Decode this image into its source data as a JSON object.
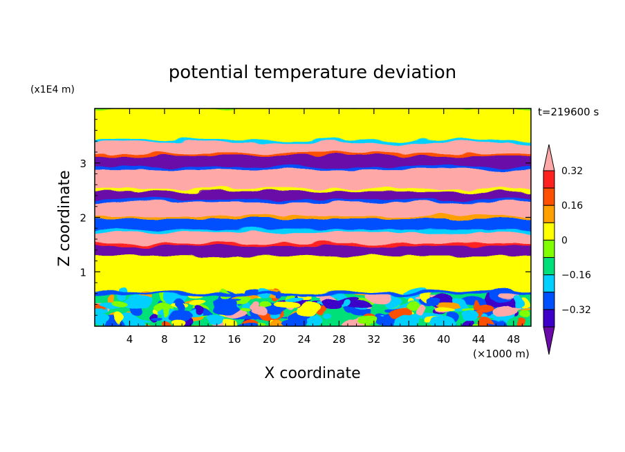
{
  "chart_data": {
    "type": "heatmap",
    "title": "potential temperature deviation",
    "xlabel": "X coordinate",
    "ylabel": "Z coordinate",
    "x_unit": "(×1000 m)",
    "y_unit": "(x1E4 m)",
    "time_label": "t=219600 s",
    "xlim": [
      0,
      50
    ],
    "ylim": [
      0,
      4
    ],
    "x_ticks": [
      4,
      8,
      12,
      16,
      20,
      24,
      28,
      32,
      36,
      40,
      44,
      48
    ],
    "y_ticks": [
      1,
      2,
      3
    ],
    "colorbar": {
      "levels": [
        -0.4,
        -0.32,
        -0.24,
        -0.16,
        -0.08,
        0,
        0.08,
        0.16,
        0.24,
        0.32,
        0.4
      ],
      "labeled_ticks": [
        0.32,
        0.16,
        0,
        -0.16,
        -0.32
      ],
      "colors_low_to_high": [
        "#6a0aa8",
        "#3c00c8",
        "#0050ff",
        "#00d0ff",
        "#00e078",
        "#80ff00",
        "#ffff00",
        "#ffa000",
        "#ff5000",
        "#ff2020",
        "#ffa8a8"
      ],
      "extend": "both"
    },
    "layers": [
      {
        "z": [
          0.0,
          0.6
        ],
        "value": "mixed"
      },
      {
        "z": [
          0.6,
          1.3
        ],
        "value": 0.0
      },
      {
        "z": [
          1.3,
          1.5
        ],
        "value": -0.4
      },
      {
        "z": [
          1.5,
          1.75
        ],
        "value": 0.32
      },
      {
        "z": [
          1.75,
          2.0
        ],
        "value": -0.32
      },
      {
        "z": [
          2.0,
          2.3
        ],
        "value": 0.4
      },
      {
        "z": [
          2.3,
          2.5
        ],
        "value": -0.4
      },
      {
        "z": [
          2.5,
          2.9
        ],
        "value": 0.4
      },
      {
        "z": [
          2.9,
          3.15
        ],
        "value": -0.4
      },
      {
        "z": [
          3.15,
          3.4
        ],
        "value": 0.4
      },
      {
        "z": [
          3.4,
          4.0
        ],
        "value": 0.0
      }
    ]
  }
}
